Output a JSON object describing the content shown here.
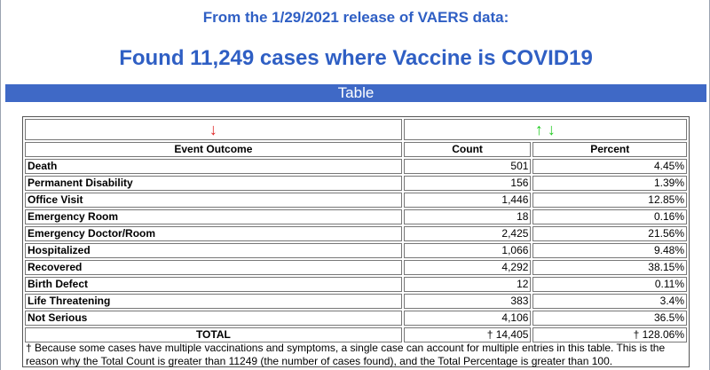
{
  "header": {
    "subtitle": "From the 1/29/2021 release of VAERS data:",
    "title": "Found 11,249 cases where Vaccine is COVID19"
  },
  "table_bar": {
    "label": "Table"
  },
  "sort_arrows": {
    "outcome": "↓",
    "count_up": "↑",
    "count_down": "↓"
  },
  "columns": {
    "outcome": "Event Outcome",
    "count": "Count",
    "percent": "Percent"
  },
  "rows": [
    {
      "outcome": "Death",
      "count": "501",
      "percent": "4.45%"
    },
    {
      "outcome": "Permanent Disability",
      "count": "156",
      "percent": "1.39%"
    },
    {
      "outcome": "Office Visit",
      "count": "1,446",
      "percent": "12.85%"
    },
    {
      "outcome": "Emergency Room",
      "count": "18",
      "percent": "0.16%"
    },
    {
      "outcome": "Emergency Doctor/Room",
      "count": "2,425",
      "percent": "21.56%"
    },
    {
      "outcome": "Hospitalized",
      "count": "1,066",
      "percent": "9.48%"
    },
    {
      "outcome": "Recovered",
      "count": "4,292",
      "percent": "38.15%"
    },
    {
      "outcome": "Birth Defect",
      "count": "12",
      "percent": "0.11%"
    },
    {
      "outcome": "Life Threatening",
      "count": "383",
      "percent": "3.4%"
    },
    {
      "outcome": "Not Serious",
      "count": "4,106",
      "percent": "36.5%"
    }
  ],
  "total": {
    "label": "TOTAL",
    "count": "† 14,405",
    "percent": "† 128.06%"
  },
  "footnote": "† Because some cases have multiple vaccinations and symptoms, a single case can account for multiple entries in this table. This is the reason why the Total Count is greater than 11249 (the number of cases found), and the Total Percentage is greater than 100.",
  "colors": {
    "heading_blue": "#2f5fc4",
    "bar_blue": "#3f69c6",
    "arrow_red": "#e02020",
    "arrow_green": "#22cc22"
  }
}
